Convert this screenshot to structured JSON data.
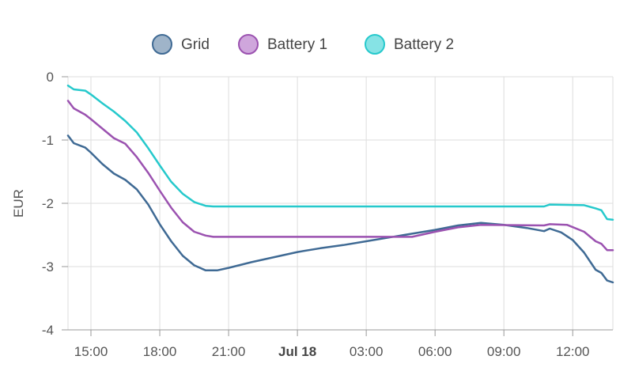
{
  "chart_data": {
    "type": "line",
    "ylabel": "EUR",
    "xlabel": "",
    "ylim": [
      -4,
      0
    ],
    "ytick_values": [
      0,
      -1,
      -2,
      -3,
      -4
    ],
    "ytick_labels": [
      "0",
      "-1",
      "-2",
      "-3",
      "-4"
    ],
    "x_range": [
      "2023-07-17T14:00",
      "2023-07-18T13:45"
    ],
    "xtick_values": [
      "2023-07-17T15:00",
      "2023-07-17T18:00",
      "2023-07-17T21:00",
      "2023-07-18T00:00",
      "2023-07-18T03:00",
      "2023-07-18T06:00",
      "2023-07-18T09:00",
      "2023-07-18T12:00"
    ],
    "xtick_labels": [
      "15:00",
      "18:00",
      "21:00",
      "Jul 18",
      "03:00",
      "06:00",
      "09:00",
      "12:00"
    ],
    "xtick_bold": [
      false,
      false,
      false,
      true,
      false,
      false,
      false,
      false
    ],
    "grid": true,
    "legend_position": "top",
    "series": [
      {
        "name": "Grid",
        "color": "#3f6a94",
        "legend_fill": "#9fb4c9",
        "points": [
          [
            "2023-07-17T14:00",
            -0.93
          ],
          [
            "2023-07-17T14:15",
            -1.05
          ],
          [
            "2023-07-17T14:45",
            -1.12
          ],
          [
            "2023-07-17T15:00",
            -1.2
          ],
          [
            "2023-07-17T15:30",
            -1.38
          ],
          [
            "2023-07-17T16:00",
            -1.53
          ],
          [
            "2023-07-17T16:30",
            -1.63
          ],
          [
            "2023-07-17T17:00",
            -1.78
          ],
          [
            "2023-07-17T17:30",
            -2.02
          ],
          [
            "2023-07-17T18:00",
            -2.33
          ],
          [
            "2023-07-17T18:30",
            -2.6
          ],
          [
            "2023-07-17T19:00",
            -2.83
          ],
          [
            "2023-07-17T19:30",
            -2.98
          ],
          [
            "2023-07-17T20:00",
            -3.06
          ],
          [
            "2023-07-17T20:30",
            -3.06
          ],
          [
            "2023-07-17T21:00",
            -3.02
          ],
          [
            "2023-07-17T22:00",
            -2.93
          ],
          [
            "2023-07-17T23:00",
            -2.85
          ],
          [
            "2023-07-18T00:00",
            -2.77
          ],
          [
            "2023-07-18T01:00",
            -2.71
          ],
          [
            "2023-07-18T02:00",
            -2.66
          ],
          [
            "2023-07-18T03:00",
            -2.6
          ],
          [
            "2023-07-18T04:00",
            -2.54
          ],
          [
            "2023-07-18T05:00",
            -2.48
          ],
          [
            "2023-07-18T06:00",
            -2.42
          ],
          [
            "2023-07-18T07:00",
            -2.35
          ],
          [
            "2023-07-18T08:00",
            -2.31
          ],
          [
            "2023-07-18T09:00",
            -2.34
          ],
          [
            "2023-07-18T10:00",
            -2.39
          ],
          [
            "2023-07-18T10:45",
            -2.44
          ],
          [
            "2023-07-18T11:00",
            -2.4
          ],
          [
            "2023-07-18T11:30",
            -2.46
          ],
          [
            "2023-07-18T12:00",
            -2.58
          ],
          [
            "2023-07-18T12:30",
            -2.78
          ],
          [
            "2023-07-18T13:00",
            -3.05
          ],
          [
            "2023-07-18T13:15",
            -3.1
          ],
          [
            "2023-07-18T13:30",
            -3.22
          ],
          [
            "2023-07-18T13:45",
            -3.25
          ]
        ]
      },
      {
        "name": "Battery 1",
        "color": "#9b52b0",
        "legend_fill": "#cfa6dc",
        "points": [
          [
            "2023-07-17T14:00",
            -0.38
          ],
          [
            "2023-07-17T14:15",
            -0.5
          ],
          [
            "2023-07-17T14:45",
            -0.6
          ],
          [
            "2023-07-17T15:00",
            -0.67
          ],
          [
            "2023-07-17T15:30",
            -0.82
          ],
          [
            "2023-07-17T16:00",
            -0.97
          ],
          [
            "2023-07-17T16:30",
            -1.06
          ],
          [
            "2023-07-17T17:00",
            -1.27
          ],
          [
            "2023-07-17T17:30",
            -1.52
          ],
          [
            "2023-07-17T18:00",
            -1.8
          ],
          [
            "2023-07-17T18:30",
            -2.07
          ],
          [
            "2023-07-17T19:00",
            -2.3
          ],
          [
            "2023-07-17T19:30",
            -2.45
          ],
          [
            "2023-07-17T20:00",
            -2.51
          ],
          [
            "2023-07-17T20:20",
            -2.53
          ],
          [
            "2023-07-18T05:00",
            -2.53
          ],
          [
            "2023-07-18T06:00",
            -2.45
          ],
          [
            "2023-07-18T07:00",
            -2.38
          ],
          [
            "2023-07-18T08:00",
            -2.34
          ],
          [
            "2023-07-18T10:45",
            -2.35
          ],
          [
            "2023-07-18T11:00",
            -2.33
          ],
          [
            "2023-07-18T11:45",
            -2.34
          ],
          [
            "2023-07-18T12:30",
            -2.45
          ],
          [
            "2023-07-18T13:00",
            -2.6
          ],
          [
            "2023-07-18T13:15",
            -2.64
          ],
          [
            "2023-07-18T13:30",
            -2.74
          ],
          [
            "2023-07-18T13:45",
            -2.74
          ]
        ]
      },
      {
        "name": "Battery 2",
        "color": "#26c9cc",
        "legend_fill": "#86e3e5",
        "points": [
          [
            "2023-07-17T14:00",
            -0.14
          ],
          [
            "2023-07-17T14:15",
            -0.2
          ],
          [
            "2023-07-17T14:45",
            -0.22
          ],
          [
            "2023-07-17T15:00",
            -0.28
          ],
          [
            "2023-07-17T15:30",
            -0.42
          ],
          [
            "2023-07-17T16:00",
            -0.55
          ],
          [
            "2023-07-17T16:30",
            -0.7
          ],
          [
            "2023-07-17T17:00",
            -0.88
          ],
          [
            "2023-07-17T17:30",
            -1.13
          ],
          [
            "2023-07-17T18:00",
            -1.4
          ],
          [
            "2023-07-17T18:30",
            -1.66
          ],
          [
            "2023-07-17T19:00",
            -1.85
          ],
          [
            "2023-07-17T19:30",
            -1.98
          ],
          [
            "2023-07-17T20:00",
            -2.04
          ],
          [
            "2023-07-17T20:20",
            -2.05
          ],
          [
            "2023-07-18T10:45",
            -2.05
          ],
          [
            "2023-07-18T11:00",
            -2.02
          ],
          [
            "2023-07-18T12:30",
            -2.03
          ],
          [
            "2023-07-18T13:00",
            -2.08
          ],
          [
            "2023-07-18T13:15",
            -2.11
          ],
          [
            "2023-07-18T13:30",
            -2.25
          ],
          [
            "2023-07-18T13:45",
            -2.26
          ]
        ]
      }
    ]
  }
}
